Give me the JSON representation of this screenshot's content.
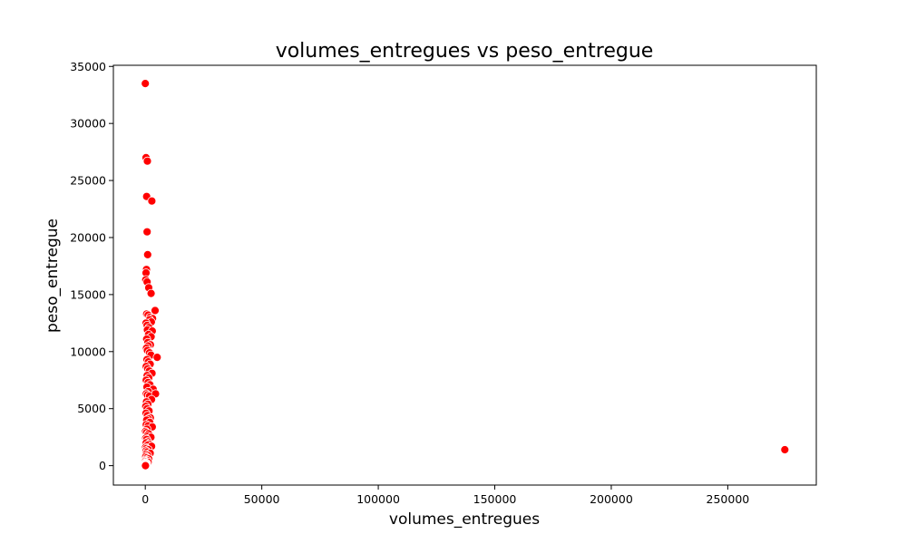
{
  "chart_data": {
    "type": "scatter",
    "title": "volumes_entregues vs peso_entregue",
    "xlabel": "volumes_entregues",
    "ylabel": "peso_entregue",
    "xlim": [
      -13700,
      288000
    ],
    "ylim": [
      -1700,
      35100
    ],
    "xticks": [
      0,
      50000,
      100000,
      150000,
      200000,
      250000
    ],
    "yticks": [
      0,
      5000,
      10000,
      15000,
      20000,
      25000,
      30000,
      35000
    ],
    "grid": false,
    "legend": "none",
    "marker_color": "#ff0000",
    "marker_edge_color": "#ffffff",
    "series": [
      {
        "x": [
          0,
          300,
          900,
          600,
          2800,
          800,
          1000,
          500,
          300,
          200,
          800,
          1500,
          2500,
          4200,
          600,
          1200,
          2000,
          3100,
          1800,
          2600,
          300,
          800,
          1600,
          900,
          3000,
          1400,
          2500,
          600,
          1100,
          2200,
          1200,
          500,
          900,
          1800,
          2400,
          5100,
          700,
          1300,
          2100,
          400,
          1000,
          1700,
          2900,
          800,
          1500,
          400,
          1200,
          2000,
          700,
          3400,
          1300,
          400,
          900,
          1800,
          4400,
          2700,
          500,
          1100,
          200,
          800,
          1600,
          300,
          900,
          2200,
          1300,
          600,
          1900,
          400,
          1200,
          3000,
          700,
          100,
          500,
          1400,
          800,
          2400,
          200,
          600,
          1100,
          400,
          1600,
          900,
          2700,
          100,
          500,
          1300,
          300,
          800,
          2100,
          400,
          1000,
          200,
          700,
          1500,
          300,
          900,
          100,
          500,
          1200,
          200,
          600,
          0,
          400,
          100,
          300,
          0,
          200,
          0,
          100,
          274500
        ],
        "y": [
          33500,
          27000,
          26700,
          23600,
          23200,
          20500,
          18500,
          17200,
          16900,
          16300,
          16100,
          15600,
          15100,
          13600,
          13300,
          13200,
          13000,
          12900,
          12800,
          12600,
          12500,
          12300,
          12100,
          11900,
          11800,
          11500,
          11300,
          11100,
          10800,
          10600,
          10500,
          10300,
          10100,
          9900,
          9700,
          9500,
          9300,
          9100,
          8900,
          8700,
          8500,
          8300,
          8100,
          7900,
          7700,
          7500,
          7300,
          7100,
          6900,
          6700,
          6500,
          6300,
          6200,
          6100,
          6300,
          5800,
          5600,
          5400,
          5200,
          5000,
          4800,
          4600,
          4400,
          4200,
          4100,
          4000,
          3800,
          3600,
          3500,
          3400,
          3200,
          3000,
          2900,
          2800,
          2600,
          2500,
          2400,
          2300,
          2100,
          2000,
          1900,
          1800,
          1700,
          1600,
          1500,
          1400,
          1300,
          1200,
          1100,
          1000,
          900,
          800,
          700,
          600,
          500,
          450,
          400,
          350,
          300,
          250,
          200,
          180,
          150,
          120,
          100,
          80,
          50,
          30,
          0,
          1400
        ]
      }
    ]
  }
}
